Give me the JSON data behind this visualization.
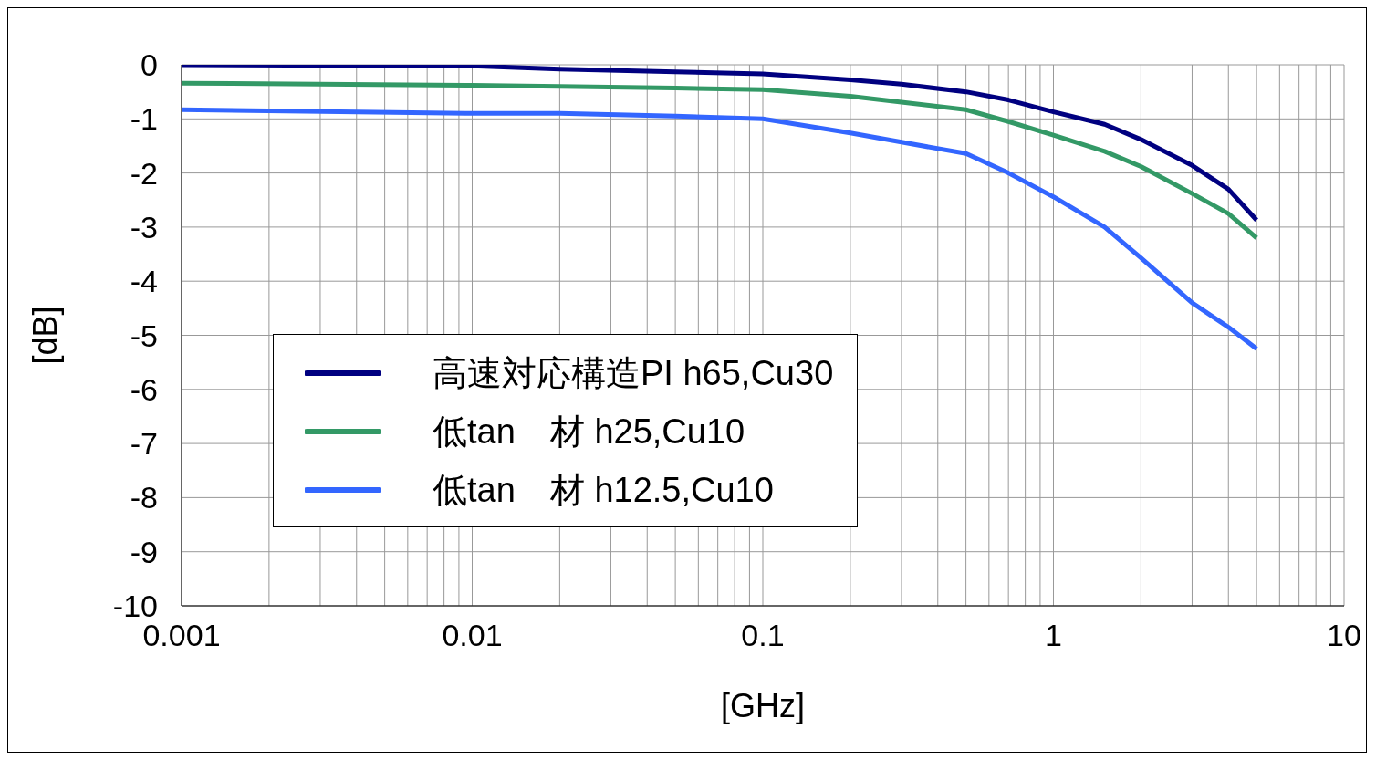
{
  "chart_data": {
    "type": "line",
    "xlabel": "[GHz]",
    "ylabel": "[dB]",
    "log": "x",
    "grid": true,
    "legend": "left",
    "marker": "none",
    "line_style": "solid",
    "x": [
      0.001,
      0.01,
      0.02,
      0.05,
      0.1,
      0.2,
      0.3,
      0.5,
      0.7,
      1,
      1.5,
      2,
      3,
      4,
      5
    ],
    "xlim": [
      0.001,
      10
    ],
    "xticks": [
      0.001,
      {
        "value": 0.002,
        "label": null
      },
      {
        "value": 0.003,
        "label": null
      },
      {
        "value": 0.004,
        "label": null
      },
      {
        "value": 0.005,
        "label": null
      },
      {
        "value": 0.006,
        "label": null
      },
      {
        "value": 0.007,
        "label": null
      },
      {
        "value": 0.008,
        "label": null
      },
      {
        "value": 0.009,
        "label": null
      },
      0.01,
      {
        "value": 0.02,
        "label": null
      },
      {
        "value": 0.03,
        "label": null
      },
      {
        "value": 0.04,
        "label": null
      },
      {
        "value": 0.05,
        "label": null
      },
      {
        "value": 0.06,
        "label": null
      },
      {
        "value": 0.07,
        "label": null
      },
      {
        "value": 0.08,
        "label": null
      },
      {
        "value": 0.09,
        "label": null
      },
      0.1,
      {
        "value": 0.2,
        "label": null
      },
      {
        "value": 0.3,
        "label": null
      },
      {
        "value": 0.4,
        "label": null
      },
      {
        "value": 0.5,
        "label": null
      },
      {
        "value": 0.6,
        "label": null
      },
      {
        "value": 0.7,
        "label": null
      },
      {
        "value": 0.8,
        "label": null
      },
      {
        "value": 0.9,
        "label": null
      },
      1,
      {
        "value": 2,
        "label": null
      },
      {
        "value": 3,
        "label": null
      },
      {
        "value": 4,
        "label": null
      },
      {
        "value": 5,
        "label": null
      },
      {
        "value": 6,
        "label": null
      },
      {
        "value": 7,
        "label": null
      },
      {
        "value": 8,
        "label": null
      },
      {
        "value": 9,
        "label": null
      },
      10
    ],
    "ylim": [
      -10,
      0
    ],
    "yticks": [
      0,
      -1,
      -2,
      -3,
      -4,
      -5,
      -6,
      -7,
      -8,
      -9,
      -10
    ],
    "series": [
      {
        "name": "高速対応構造PI h65,Cu30",
        "color": "#000080",
        "values": [
          0,
          -0.02,
          -0.08,
          -0.13,
          -0.17,
          -0.28,
          -0.36,
          -0.5,
          -0.65,
          -0.87,
          -1.1,
          -1.38,
          -1.86,
          -2.3,
          -2.87
        ]
      },
      {
        "name": "低tan　材 h25,Cu10",
        "color": "#339966",
        "values": [
          -0.34,
          -0.38,
          -0.4,
          -0.43,
          -0.46,
          -0.58,
          -0.69,
          -0.83,
          -1.05,
          -1.3,
          -1.6,
          -1.88,
          -2.38,
          -2.75,
          -3.2
        ]
      },
      {
        "name": "低tan　材 h12.5,Cu10",
        "color": "#3366ff",
        "values": [
          -0.83,
          -0.9,
          -0.9,
          -0.95,
          -1.0,
          -1.26,
          -1.43,
          -1.64,
          -2.0,
          -2.44,
          -3.0,
          -3.57,
          -4.4,
          -4.85,
          -5.25
        ]
      }
    ]
  }
}
